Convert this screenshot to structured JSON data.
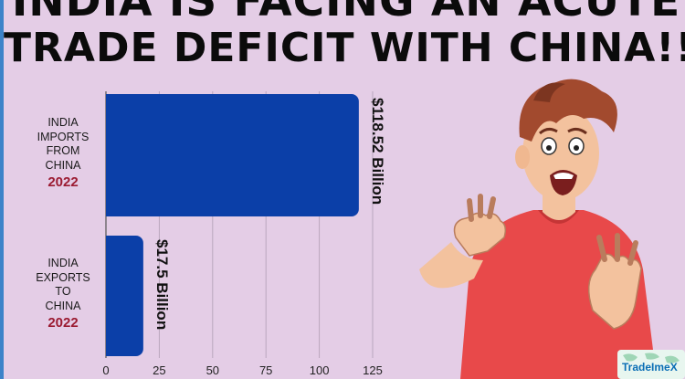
{
  "headline": {
    "line1": "INDIA IS FACING AN ACUTE",
    "line2": "TRADE DEFICIT WITH CHINA!!"
  },
  "chart_data": {
    "type": "bar",
    "orientation": "horizontal",
    "categories": [
      {
        "lines": [
          "INDIA",
          "IMPORTS",
          "FROM",
          "CHINA"
        ],
        "year": "2022"
      },
      {
        "lines": [
          "INDIA",
          "EXPORTS",
          "TO",
          "CHINA"
        ],
        "year": "2022"
      }
    ],
    "values": [
      118.52,
      17.5
    ],
    "value_labels": [
      "$118.52 Billion",
      "$17.5 Billion"
    ],
    "xticks": [
      "0",
      "25",
      "50",
      "75",
      "100",
      "125"
    ],
    "xlim": [
      0,
      125
    ],
    "grid": true,
    "bar_color": "#0b3fa8"
  },
  "logo": {
    "text": "TradeImeX"
  },
  "colors": {
    "background": "#e4cde6",
    "accent_border": "#3d83c9",
    "year_text": "#9b1b32"
  },
  "illustration": {
    "icon": "frightened-man-illustration"
  }
}
